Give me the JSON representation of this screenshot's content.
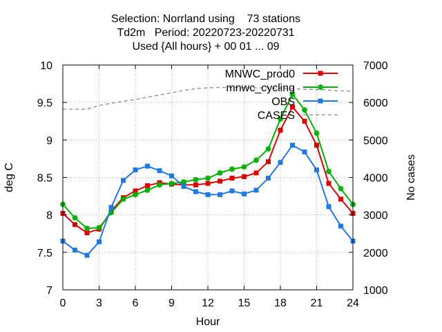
{
  "chart_data": {
    "type": "line",
    "title_lines": [
      "Selection: Norrland using    73 stations",
      "Td2m   Period: 20220723-20220731",
      "Used {All hours} + 00 01 ... 09"
    ],
    "xlabel": "Hour",
    "ylabel": "deg C",
    "y2label": "No cases",
    "xlim": [
      0,
      24
    ],
    "ylim": [
      7,
      10
    ],
    "y2lim": [
      1000,
      7000
    ],
    "x_ticks": [
      0,
      3,
      6,
      9,
      12,
      15,
      18,
      21,
      24
    ],
    "x_tick_labels": [
      "0",
      "3",
      "6",
      "9",
      "12",
      "15",
      "18",
      "21",
      "24"
    ],
    "y_ticks": [
      7,
      7.5,
      8,
      8.5,
      9,
      9.5,
      10
    ],
    "y_tick_labels": [
      "7",
      "7.5",
      "8",
      "8.5",
      "9",
      "9.5",
      "10"
    ],
    "y2_ticks": [
      1000,
      2000,
      3000,
      4000,
      5000,
      6000,
      7000
    ],
    "y2_tick_labels": [
      "1000",
      "2000",
      "3000",
      "4000",
      "5000",
      "6000",
      "7000"
    ],
    "grid": true,
    "legend_position": "top-right",
    "x": [
      0,
      1,
      2,
      3,
      4,
      5,
      6,
      7,
      8,
      9,
      10,
      11,
      12,
      13,
      14,
      15,
      16,
      17,
      18,
      19,
      20,
      21,
      22,
      23,
      24
    ],
    "series": [
      {
        "name": "MNWC_prod0",
        "color": "#e00000",
        "marker": "square",
        "values": [
          8.02,
          7.87,
          7.76,
          7.81,
          8.05,
          8.23,
          8.32,
          8.39,
          8.43,
          8.41,
          8.4,
          8.4,
          8.42,
          8.45,
          8.49,
          8.51,
          8.56,
          8.71,
          9.13,
          9.44,
          9.25,
          8.93,
          8.42,
          8.21,
          8.02
        ]
      },
      {
        "name": "mnwc_cycling",
        "color": "#00b000",
        "marker": "star",
        "values": [
          8.14,
          7.96,
          7.82,
          7.83,
          8.03,
          8.21,
          8.27,
          8.33,
          8.4,
          8.42,
          8.44,
          8.47,
          8.49,
          8.56,
          8.61,
          8.64,
          8.73,
          8.88,
          9.28,
          9.61,
          9.4,
          9.09,
          8.58,
          8.35,
          8.14
        ]
      },
      {
        "name": "OBS",
        "color": "#1e78e6",
        "marker": "square",
        "values": [
          7.65,
          7.53,
          7.46,
          7.64,
          8.1,
          8.46,
          8.6,
          8.65,
          8.59,
          8.52,
          8.38,
          8.31,
          8.27,
          8.27,
          8.32,
          8.28,
          8.33,
          8.49,
          8.7,
          8.93,
          8.84,
          8.6,
          8.11,
          7.85,
          7.65
        ]
      },
      {
        "name": "CASES",
        "color": "#888888",
        "axis": "right",
        "style": "dashed",
        "values": [
          5820,
          5820,
          5820,
          5920,
          5980,
          6030,
          6080,
          6140,
          6200,
          6260,
          6320,
          6370,
          6390,
          6400,
          6400,
          6390,
          6390,
          6390,
          6380,
          6370,
          6350,
          6350,
          6330,
          6310,
          6300
        ]
      }
    ]
  }
}
